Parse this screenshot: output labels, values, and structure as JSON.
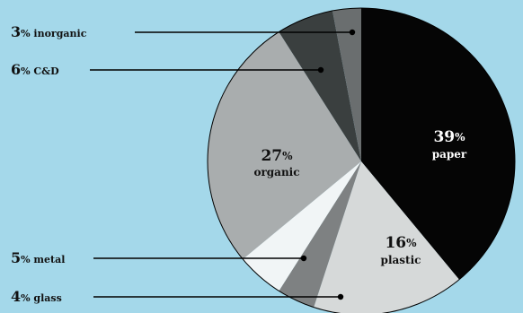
{
  "background": "#a4d8ea",
  "chart_data": {
    "type": "pie",
    "start": "top",
    "direction": "clockwise",
    "slices": [
      {
        "num": "39",
        "pct": "%",
        "name": "paper",
        "value": 39,
        "color": "#050505",
        "label_mode": "inside",
        "text_color": "#ffffff"
      },
      {
        "num": "16",
        "pct": "%",
        "name": "plastic",
        "value": 16,
        "color": "#d6d9d9",
        "label_mode": "inside",
        "text_color": "#111111"
      },
      {
        "num": "4",
        "pct": "%",
        "name": "glass",
        "value": 4,
        "color": "#7e8182",
        "label_mode": "callout",
        "text_color": "#111111"
      },
      {
        "num": "5",
        "pct": "%",
        "name": "metal",
        "value": 5,
        "color": "#f1f5f6",
        "label_mode": "callout",
        "text_color": "#111111"
      },
      {
        "num": "27",
        "pct": "%",
        "name": "organic",
        "value": 27,
        "color": "#a9adae",
        "label_mode": "inside",
        "text_color": "#111111"
      },
      {
        "num": "6",
        "pct": "%",
        "name": "C&D",
        "value": 6,
        "color": "#3a3f3f",
        "label_mode": "callout",
        "text_color": "#111111"
      },
      {
        "num": "3",
        "pct": "%",
        "name": "inorganic",
        "value": 3,
        "color": "#6a6e6f",
        "label_mode": "callout",
        "text_color": "#111111"
      }
    ]
  }
}
